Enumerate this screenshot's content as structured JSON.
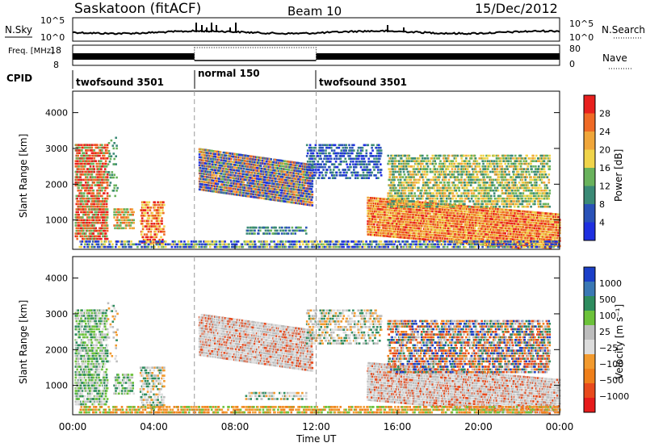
{
  "header": {
    "station": "Saskatoon (fitACF)",
    "beam": "Beam 10",
    "date": "15/Dec/2012"
  },
  "colors": {
    "power_scale": [
      "#1f30e0",
      "#2a52b8",
      "#3b8a76",
      "#69b25c",
      "#f0d44a",
      "#f0a63a",
      "#ef6a26",
      "#e8201e"
    ],
    "velocity_scale": [
      "#1b3fc8",
      "#3a78b4",
      "#2e8c5e",
      "#6cc23a",
      "#bdbdbd",
      "#dcdcdc",
      "#f29a2e",
      "#ef7f1a",
      "#e84a1c",
      "#e61b1b"
    ]
  },
  "chart_data": [
    {
      "type": "line",
      "panel": "nsky",
      "ylabel": "N.Sky",
      "ylabel_right": "N.Search",
      "yticks_left": [
        "10^5",
        "10^0"
      ],
      "yticks_right": [
        "10^5",
        "10^0"
      ],
      "legend": "N.Search"
    },
    {
      "type": "line",
      "panel": "freq",
      "ylabel": "Freq. [MHz]",
      "yticks_left": [
        "18",
        "8"
      ],
      "ylabel_right": "Nave",
      "yticks_right": [
        "80",
        "0"
      ],
      "legend": "Nave"
    },
    {
      "type": "table",
      "panel": "cpid",
      "label": "CPID",
      "segments": [
        {
          "name": "twofsound 3501",
          "start_h": 0,
          "end_h": 6
        },
        {
          "name": "normal 150",
          "start_h": 6,
          "end_h": 12
        },
        {
          "name": "twofsound 3501",
          "start_h": 12,
          "end_h": 24
        }
      ]
    },
    {
      "type": "heatmap",
      "panel": "power",
      "ylabel": "Slant Range [km]",
      "yticks": [
        1000,
        2000,
        3000,
        4000
      ],
      "ylim": [
        180,
        4600
      ],
      "xlim": [
        0,
        24
      ],
      "colorbar_label": "Power [dB]",
      "colorbar_ticks": [
        "4",
        "8",
        "12",
        "16",
        "20",
        "24",
        "28"
      ]
    },
    {
      "type": "heatmap",
      "panel": "velocity",
      "ylabel": "Slant Range [km]",
      "yticks": [
        1000,
        2000,
        3000,
        4000
      ],
      "ylim": [
        180,
        4600
      ],
      "xlim": [
        0,
        24
      ],
      "colorbar_label": "Velocity [m s⁻¹]",
      "colorbar_ticks": [
        "1000",
        "500",
        "100",
        "25",
        "−25",
        "−100",
        "−500",
        "−1000"
      ]
    }
  ],
  "time_axis": {
    "ticks": [
      "00:00",
      "04:00",
      "08:00",
      "12:00",
      "16:00",
      "20:00",
      "00:00"
    ],
    "tick_hours": [
      0,
      4,
      8,
      12,
      16,
      20,
      24
    ],
    "xlabel": "Time UT"
  }
}
